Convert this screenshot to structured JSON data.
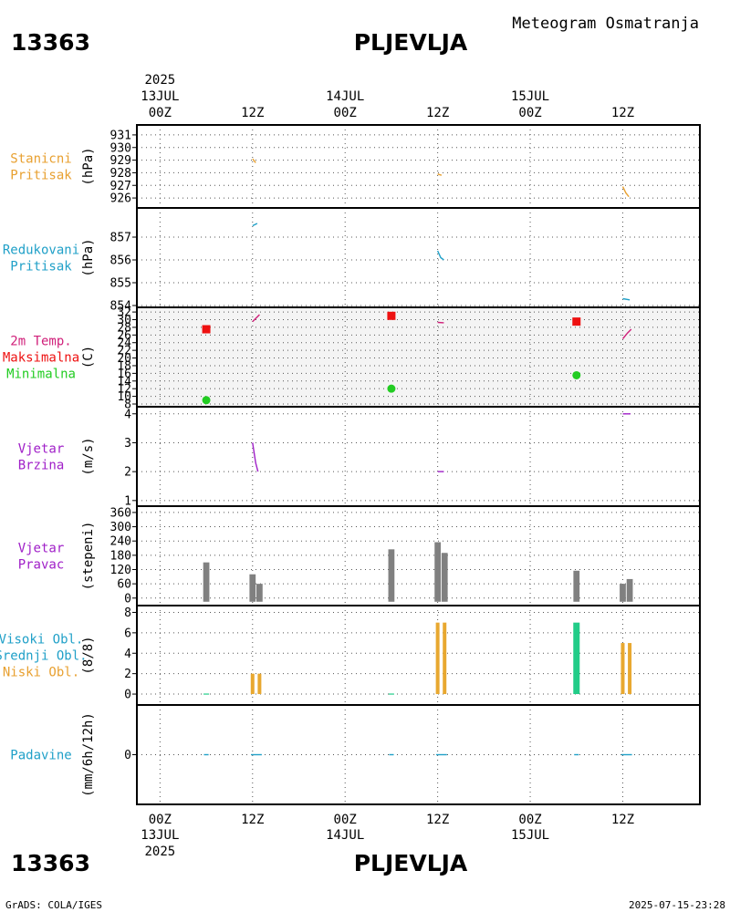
{
  "header": {
    "subtitle": "Meteogram Osmatranja",
    "station_id": "13363",
    "station_name": "PLJEVLJA"
  },
  "footer": {
    "station_id": "13363",
    "station_name": "PLJEVLJA",
    "credit": "GrADS: COLA/IGES",
    "timestamp": "2025-07-15-23:28"
  },
  "time_axis": {
    "top_year": "2025",
    "bottom_year": "2025",
    "ticks": [
      {
        "t": 0,
        "label": "00Z",
        "date": "13JUL"
      },
      {
        "t": 12,
        "label": "12Z",
        "date": ""
      },
      {
        "t": 24,
        "label": "00Z",
        "date": "14JUL"
      },
      {
        "t": 36,
        "label": "12Z",
        "date": ""
      },
      {
        "t": 48,
        "label": "00Z",
        "date": "15JUL"
      },
      {
        "t": 60,
        "label": "12Z",
        "date": ""
      }
    ],
    "range_hours": [
      -3,
      70
    ]
  },
  "colors": {
    "station_pressure": "#e8a030",
    "reduced_pressure": "#20a0c8",
    "temp_label": "#d0207a",
    "tmax": "#ee1111",
    "tmin": "#22cc22",
    "wind": "#a020c8",
    "bar_gray": "#808080",
    "cloud_high": "#22cc88",
    "cloud_low": "#e8a830",
    "precip": "#20a0c8"
  },
  "chart_data": [
    {
      "type": "line",
      "id": "station_pressure",
      "label_lines": [
        "Stanicni",
        "Pritisak"
      ],
      "unit": "(hPa)",
      "ylim": [
        925.5,
        931.5
      ],
      "yticks": [
        926,
        927,
        928,
        929,
        930,
        931
      ],
      "series": [
        {
          "name": "Stanicni pritisak",
          "points": [
            [
              12.0,
              929.1
            ],
            [
              12.4,
              928.8
            ]
          ]
        },
        {
          "name": "Stanicni pritisak",
          "points": [
            [
              36.0,
              927.9
            ],
            [
              36.5,
              927.8
            ]
          ]
        },
        {
          "name": "Stanicni pritisak",
          "points": [
            [
              60.0,
              926.9
            ],
            [
              60.4,
              926.4
            ],
            [
              60.8,
              926.1
            ]
          ]
        }
      ]
    },
    {
      "type": "line",
      "id": "reduced_pressure",
      "label_lines": [
        "Redukovani",
        "Pritisak"
      ],
      "unit": "(hPa)",
      "ylim": [
        854,
        858.2
      ],
      "yticks": [
        854,
        855,
        856,
        857
      ],
      "series": [
        {
          "name": "Redukovani pritisak",
          "points": [
            [
              12.0,
              857.5
            ],
            [
              12.6,
              857.6
            ]
          ]
        },
        {
          "name": "Redukovani pritisak",
          "points": [
            [
              36.0,
              856.4
            ],
            [
              36.4,
              856.1
            ],
            [
              36.8,
              856.0
            ]
          ]
        },
        {
          "name": "Redukovani pritisak",
          "points": [
            [
              60.0,
              854.3
            ],
            [
              60.9,
              854.25
            ]
          ]
        }
      ]
    },
    {
      "type": "scatter",
      "id": "temperature",
      "label_lines": [
        "2m Temp.",
        "Maksimalna",
        "Minimalna"
      ],
      "unit": "(C)",
      "ylim": [
        8,
        32.5
      ],
      "yticks": [
        8,
        10,
        12,
        14,
        16,
        18,
        20,
        22,
        24,
        26,
        28,
        30,
        32
      ],
      "tmax": {
        "name": "Maksimalna",
        "points": [
          [
            6,
            27.5
          ],
          [
            30,
            31.0
          ],
          [
            54,
            29.5
          ]
        ]
      },
      "tmin": {
        "name": "Minimalna",
        "points": [
          [
            6,
            9.0
          ],
          [
            30,
            12.0
          ],
          [
            54,
            15.5
          ]
        ]
      },
      "series": [
        {
          "name": "2m Temp.",
          "points": [
            [
              12.0,
              29.5
            ],
            [
              12.9,
              31.3
            ]
          ]
        },
        {
          "name": "2m Temp.",
          "points": [
            [
              36.0,
              29.3
            ],
            [
              36.8,
              29.2
            ]
          ]
        },
        {
          "name": "2m Temp.",
          "points": [
            [
              60.0,
              25.0
            ],
            [
              60.6,
              26.5
            ],
            [
              61.1,
              27.5
            ]
          ]
        }
      ]
    },
    {
      "type": "line",
      "id": "wind_speed",
      "label_lines": [
        "Vjetar",
        "Brzina"
      ],
      "unit": "(m/s)",
      "ylim": [
        0.9,
        4.15
      ],
      "yticks": [
        1,
        2,
        3,
        4
      ],
      "series": [
        {
          "name": "Brzina",
          "points": [
            [
              12.0,
              3.0
            ],
            [
              12.4,
              2.3
            ],
            [
              12.7,
              2.0
            ]
          ]
        },
        {
          "name": "Brzina",
          "points": [
            [
              36.0,
              2.0
            ],
            [
              36.8,
              2.0
            ]
          ]
        },
        {
          "name": "Brzina",
          "points": [
            [
              60.0,
              4.0
            ],
            [
              61.0,
              4.0
            ]
          ]
        }
      ]
    },
    {
      "type": "bar",
      "id": "wind_direction",
      "label_lines": [
        "Vjetar",
        "Pravac"
      ],
      "unit": "(stepeni)",
      "ylim": [
        -20,
        375
      ],
      "yticks": [
        0,
        60,
        120,
        180,
        240,
        300,
        360
      ],
      "bar_width_hours": 0.8,
      "bars": [
        {
          "t": 6.0,
          "value": 150
        },
        {
          "t": 12.0,
          "value": 100
        },
        {
          "t": 12.9,
          "value": 60
        },
        {
          "t": 30.0,
          "value": 205
        },
        {
          "t": 36.0,
          "value": 235
        },
        {
          "t": 36.9,
          "value": 190
        },
        {
          "t": 54.0,
          "value": 115
        },
        {
          "t": 60.0,
          "value": 60
        },
        {
          "t": 60.9,
          "value": 80
        }
      ]
    },
    {
      "type": "bar",
      "id": "clouds",
      "label_lines": [
        "Visoki Obl.",
        "Srednji Obl.",
        "Niski Obl."
      ],
      "unit": "(8/8)",
      "ylim": [
        -0.8,
        8.4
      ],
      "yticks": [
        0,
        2,
        4,
        6,
        8
      ],
      "high": [
        {
          "t": 54.0,
          "value": 7
        }
      ],
      "low": [
        {
          "t": 12.0,
          "value": 2
        },
        {
          "t": 12.9,
          "value": 2
        },
        {
          "t": 36.0,
          "value": 7
        },
        {
          "t": 36.9,
          "value": 7
        },
        {
          "t": 60.0,
          "value": 5
        },
        {
          "t": 60.9,
          "value": 5
        }
      ]
    },
    {
      "type": "line",
      "id": "precipitation",
      "label_lines": [
        "Padavine"
      ],
      "unit": "(mm/6h/12h)",
      "ylim": [
        -5,
        5
      ],
      "yticks": [
        0
      ],
      "series": [
        {
          "name": "Padavine",
          "points": [
            [
              5.7,
              0
            ],
            [
              6.3,
              0
            ]
          ]
        },
        {
          "name": "Padavine",
          "points": [
            [
              11.8,
              0
            ],
            [
              13.2,
              0
            ]
          ]
        },
        {
          "name": "Padavine",
          "points": [
            [
              29.7,
              0
            ],
            [
              30.3,
              0
            ]
          ]
        },
        {
          "name": "Padavine",
          "points": [
            [
              35.8,
              0
            ],
            [
              37.2,
              0
            ]
          ]
        },
        {
          "name": "Padavine",
          "points": [
            [
              53.7,
              0
            ],
            [
              54.3,
              0
            ]
          ]
        },
        {
          "name": "Padavine",
          "points": [
            [
              59.8,
              0
            ],
            [
              61.2,
              0
            ]
          ]
        }
      ]
    }
  ]
}
